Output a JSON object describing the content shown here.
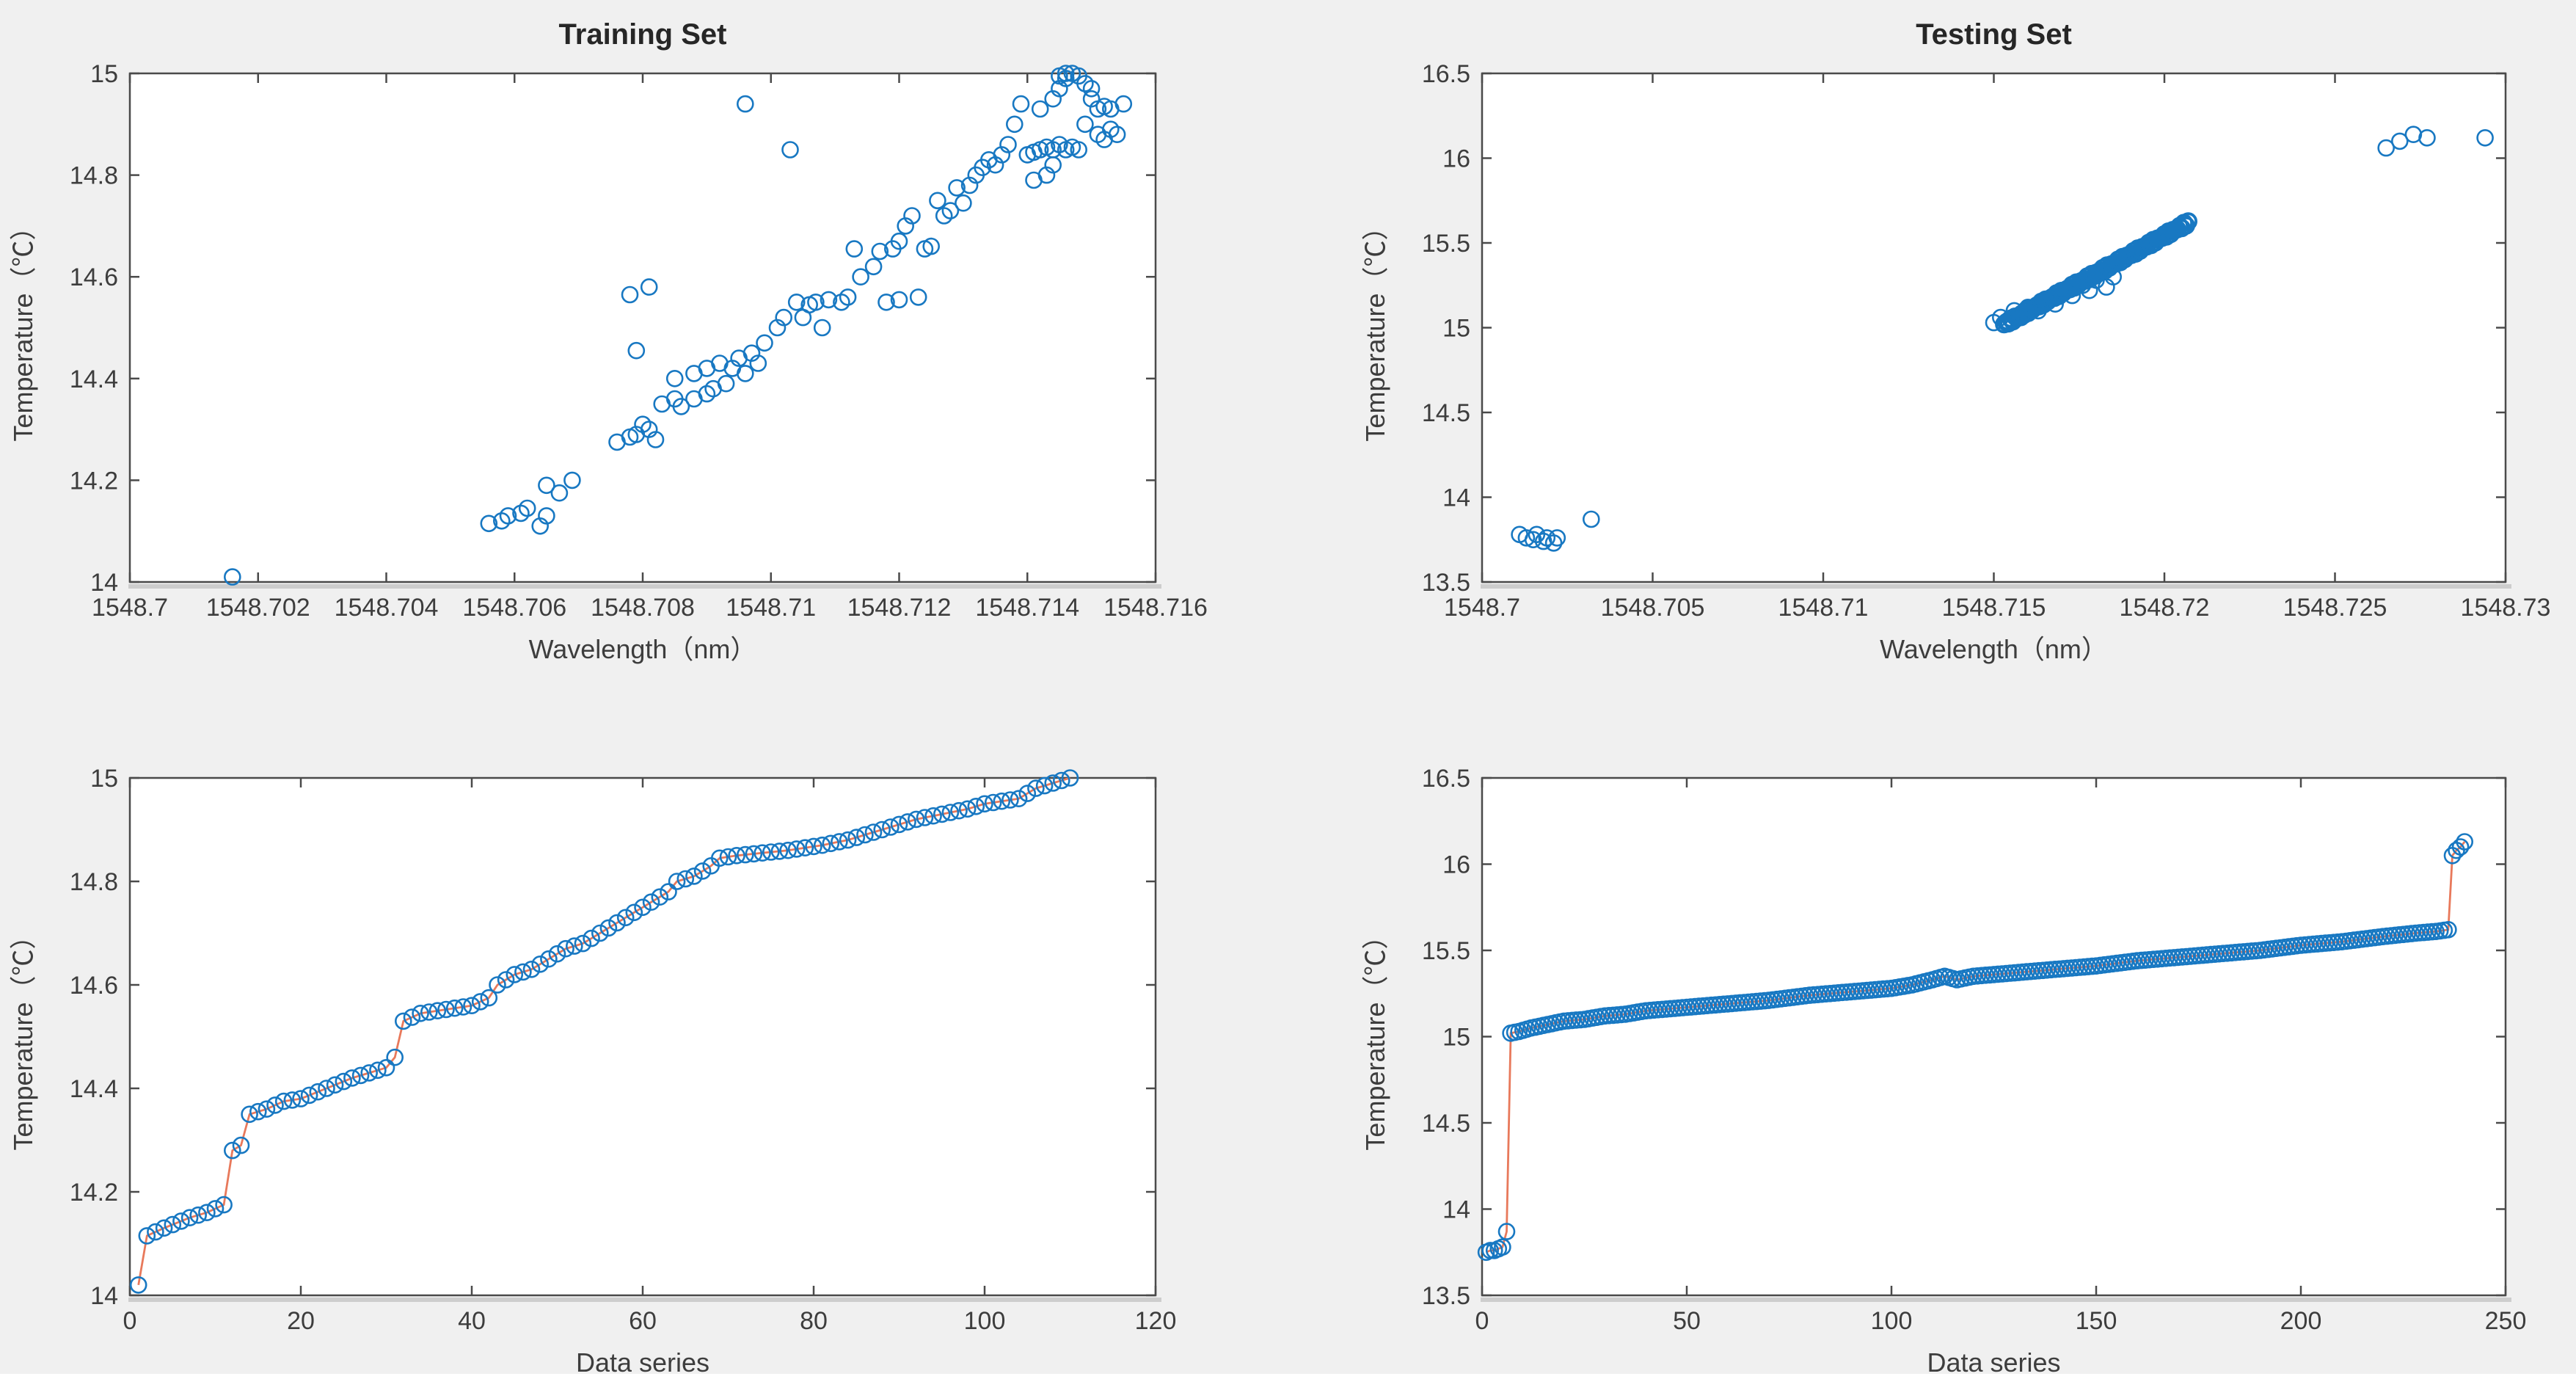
{
  "figure": {
    "bg_color": "#f0f0f0",
    "panel_bg_color": "#ffffff",
    "frame_color": "#4a4a4a",
    "shadow_color": "#cdcdcd",
    "tick_label_color": "#3d3d3d",
    "title_color": "#262626",
    "marker_color": "#1878c2",
    "line_color": "#e8795b"
  },
  "chart_data": [
    {
      "id": "training-scatter",
      "type": "scatter",
      "title": "Training Set",
      "xlabel": "Wavelength（nm）",
      "ylabel": "Temperature（℃）",
      "xlim": [
        1548.7,
        1548.716
      ],
      "ylim": [
        14,
        15
      ],
      "grid": false,
      "legend": null,
      "xtick_vals": [
        1548.7,
        1548.702,
        1548.704,
        1548.706,
        1548.708,
        1548.71,
        1548.712,
        1548.714,
        1548.716
      ],
      "xtick_labels": [
        "1548.7",
        "1548.702",
        "1548.704",
        "1548.706",
        "1548.708",
        "1548.71",
        "1548.712",
        "1548.714",
        "1548.716"
      ],
      "ytick_vals": [
        14,
        14.2,
        14.4,
        14.6,
        14.8,
        15
      ],
      "ytick_labels": [
        "14",
        "14.2",
        "14.4",
        "14.6",
        "14.8",
        "15"
      ],
      "points": [
        [
          1548.7016,
          14.01
        ],
        [
          1548.7056,
          14.115
        ],
        [
          1548.7058,
          14.12
        ],
        [
          1548.7059,
          14.13
        ],
        [
          1548.7061,
          14.135
        ],
        [
          1548.7062,
          14.145
        ],
        [
          1548.7064,
          14.11
        ],
        [
          1548.7065,
          14.13
        ],
        [
          1548.7065,
          14.19
        ],
        [
          1548.7067,
          14.175
        ],
        [
          1548.7069,
          14.2
        ],
        [
          1548.7076,
          14.275
        ],
        [
          1548.7078,
          14.285
        ],
        [
          1548.7079,
          14.29
        ],
        [
          1548.7081,
          14.3
        ],
        [
          1548.7082,
          14.28
        ],
        [
          1548.708,
          14.31
        ],
        [
          1548.7078,
          14.565
        ],
        [
          1548.7081,
          14.58
        ],
        [
          1548.7079,
          14.455
        ],
        [
          1548.7083,
          14.35
        ],
        [
          1548.7085,
          14.36
        ],
        [
          1548.7086,
          14.345
        ],
        [
          1548.7088,
          14.36
        ],
        [
          1548.709,
          14.37
        ],
        [
          1548.7091,
          14.38
        ],
        [
          1548.7093,
          14.39
        ],
        [
          1548.7085,
          14.4
        ],
        [
          1548.7088,
          14.41
        ],
        [
          1548.709,
          14.42
        ],
        [
          1548.7092,
          14.43
        ],
        [
          1548.7094,
          14.42
        ],
        [
          1548.7095,
          14.44
        ],
        [
          1548.7097,
          14.45
        ],
        [
          1548.7096,
          14.41
        ],
        [
          1548.7098,
          14.43
        ],
        [
          1548.7096,
          14.94
        ],
        [
          1548.7103,
          14.85
        ],
        [
          1548.7099,
          14.47
        ],
        [
          1548.7101,
          14.5
        ],
        [
          1548.7102,
          14.52
        ],
        [
          1548.7104,
          14.55
        ],
        [
          1548.7106,
          14.545
        ],
        [
          1548.7107,
          14.55
        ],
        [
          1548.7109,
          14.555
        ],
        [
          1548.7111,
          14.55
        ],
        [
          1548.7112,
          14.56
        ],
        [
          1548.7105,
          14.52
        ],
        [
          1548.7108,
          14.5
        ],
        [
          1548.7114,
          14.6
        ],
        [
          1548.7116,
          14.62
        ],
        [
          1548.7117,
          14.65
        ],
        [
          1548.7119,
          14.655
        ],
        [
          1548.712,
          14.67
        ],
        [
          1548.7121,
          14.7
        ],
        [
          1548.7122,
          14.72
        ],
        [
          1548.7118,
          14.55
        ],
        [
          1548.712,
          14.555
        ],
        [
          1548.7123,
          14.56
        ],
        [
          1548.7124,
          14.655
        ],
        [
          1548.7125,
          14.66
        ],
        [
          1548.7126,
          14.75
        ],
        [
          1548.7127,
          14.72
        ],
        [
          1548.7113,
          14.655
        ],
        [
          1548.7129,
          14.775
        ],
        [
          1548.7131,
          14.78
        ],
        [
          1548.7132,
          14.8
        ],
        [
          1548.7133,
          14.815
        ],
        [
          1548.7134,
          14.83
        ],
        [
          1548.7135,
          14.82
        ],
        [
          1548.7136,
          14.84
        ],
        [
          1548.7137,
          14.86
        ],
        [
          1548.713,
          14.745
        ],
        [
          1548.7128,
          14.73
        ],
        [
          1548.7139,
          14.94
        ],
        [
          1548.7138,
          14.9
        ],
        [
          1548.714,
          14.84
        ],
        [
          1548.7141,
          14.845
        ],
        [
          1548.7142,
          14.85
        ],
        [
          1548.7143,
          14.855
        ],
        [
          1548.7144,
          14.85
        ],
        [
          1548.7145,
          14.86
        ],
        [
          1548.7146,
          14.85
        ],
        [
          1548.7147,
          14.855
        ],
        [
          1548.7148,
          14.85
        ],
        [
          1548.7141,
          14.79
        ],
        [
          1548.7143,
          14.8
        ],
        [
          1548.7144,
          14.82
        ],
        [
          1548.7142,
          14.93
        ],
        [
          1548.7144,
          14.95
        ],
        [
          1548.7145,
          14.97
        ],
        [
          1548.7146,
          14.99
        ],
        [
          1548.7147,
          15.0
        ],
        [
          1548.7148,
          14.995
        ],
        [
          1548.7149,
          14.98
        ],
        [
          1548.715,
          14.97
        ],
        [
          1548.715,
          14.95
        ],
        [
          1548.7151,
          14.93
        ],
        [
          1548.7152,
          14.935
        ],
        [
          1548.7149,
          14.9
        ],
        [
          1548.7151,
          14.88
        ],
        [
          1548.7153,
          14.89
        ],
        [
          1548.7152,
          14.87
        ],
        [
          1548.7154,
          14.88
        ],
        [
          1548.7153,
          14.93
        ],
        [
          1548.7155,
          14.94
        ],
        [
          1548.7146,
          15.0
        ],
        [
          1548.7145,
          14.995
        ]
      ]
    },
    {
      "id": "testing-scatter",
      "type": "scatter",
      "title": "Testing Set",
      "xlabel": "Wavelength（nm）",
      "ylabel": "Temperature（℃）",
      "xlim": [
        1548.7,
        1548.73
      ],
      "ylim": [
        13.5,
        16.5
      ],
      "grid": false,
      "legend": null,
      "xtick_vals": [
        1548.7,
        1548.705,
        1548.71,
        1548.715,
        1548.72,
        1548.725,
        1548.73
      ],
      "xtick_labels": [
        "1548.7",
        "1548.705",
        "1548.71",
        "1548.715",
        "1548.72",
        "1548.725",
        "1548.73"
      ],
      "ytick_vals": [
        13.5,
        14,
        14.5,
        15,
        15.5,
        16,
        16.5
      ],
      "ytick_labels": [
        "13.5",
        "14",
        "14.5",
        "15",
        "15.5",
        "16",
        "16.5"
      ],
      "points": [
        [
          1548.7011,
          13.78
        ],
        [
          1548.7013,
          13.76
        ],
        [
          1548.7015,
          13.75
        ],
        [
          1548.7016,
          13.78
        ],
        [
          1548.7018,
          13.74
        ],
        [
          1548.7019,
          13.76
        ],
        [
          1548.7021,
          13.73
        ],
        [
          1548.7022,
          13.76
        ],
        [
          1548.7032,
          13.87
        ],
        [
          1548.715,
          15.03
        ],
        [
          1548.7152,
          15.06
        ],
        [
          1548.7154,
          15.04
        ],
        [
          1548.7156,
          15.1
        ],
        [
          1548.7158,
          15.06
        ],
        [
          1548.716,
          15.12
        ],
        [
          1548.7163,
          15.1
        ],
        [
          1548.7166,
          15.17
        ],
        [
          1548.7168,
          15.14
        ],
        [
          1548.717,
          15.22
        ],
        [
          1548.7173,
          15.19
        ],
        [
          1548.7176,
          15.25
        ],
        [
          1548.7178,
          15.22
        ],
        [
          1548.718,
          15.28
        ],
        [
          1548.7183,
          15.24
        ],
        [
          1548.7185,
          15.3
        ],
        [
          1548.7265,
          16.06
        ],
        [
          1548.7269,
          16.1
        ],
        [
          1548.7273,
          16.14
        ],
        [
          1548.7277,
          16.12
        ],
        [
          1548.7294,
          16.12
        ]
      ],
      "dense_streak": {
        "n": 85,
        "x_start": 1548.7153,
        "t_start": 15.02,
        "x_end": 1548.7207,
        "t_end": 15.62,
        "jitter": 0.012
      }
    },
    {
      "id": "training-sorted",
      "type": "line-scatter",
      "title": "",
      "xlabel": "Data series",
      "ylabel": "Temperature（℃）",
      "xlim": [
        0,
        120
      ],
      "ylim": [
        14,
        15
      ],
      "grid": false,
      "legend": null,
      "xtick_vals": [
        0,
        20,
        40,
        60,
        80,
        100,
        120
      ],
      "xtick_labels": [
        "0",
        "20",
        "40",
        "60",
        "80",
        "100",
        "120"
      ],
      "ytick_vals": [
        14,
        14.2,
        14.4,
        14.6,
        14.8,
        15
      ],
      "ytick_labels": [
        "14",
        "14.2",
        "14.4",
        "14.6",
        "14.8",
        "15"
      ],
      "x_step": 1,
      "knots": [
        [
          1,
          14.02
        ],
        [
          2,
          14.115
        ],
        [
          4,
          14.13
        ],
        [
          7,
          14.15
        ],
        [
          9,
          14.16
        ],
        [
          11,
          14.175
        ],
        [
          12,
          14.28
        ],
        [
          13,
          14.29
        ],
        [
          14,
          14.35
        ],
        [
          16,
          14.36
        ],
        [
          18,
          14.375
        ],
        [
          20,
          14.38
        ],
        [
          23,
          14.4
        ],
        [
          26,
          14.42
        ],
        [
          28,
          14.43
        ],
        [
          30,
          14.44
        ],
        [
          31,
          14.46
        ],
        [
          32,
          14.53
        ],
        [
          34,
          14.545
        ],
        [
          36,
          14.55
        ],
        [
          38,
          14.555
        ],
        [
          40,
          14.56
        ],
        [
          42,
          14.575
        ],
        [
          43,
          14.6
        ],
        [
          45,
          14.62
        ],
        [
          47,
          14.63
        ],
        [
          49,
          14.65
        ],
        [
          51,
          14.67
        ],
        [
          53,
          14.68
        ],
        [
          55,
          14.7
        ],
        [
          57,
          14.72
        ],
        [
          59,
          14.74
        ],
        [
          61,
          14.76
        ],
        [
          63,
          14.78
        ],
        [
          64,
          14.8
        ],
        [
          66,
          14.81
        ],
        [
          68,
          14.83
        ],
        [
          69,
          14.845
        ],
        [
          71,
          14.85
        ],
        [
          74,
          14.855
        ],
        [
          77,
          14.86
        ],
        [
          79,
          14.865
        ],
        [
          81,
          14.87
        ],
        [
          84,
          14.88
        ],
        [
          86,
          14.89
        ],
        [
          88,
          14.9
        ],
        [
          90,
          14.91
        ],
        [
          92,
          14.92
        ],
        [
          95,
          14.93
        ],
        [
          98,
          14.94
        ],
        [
          100,
          14.95
        ],
        [
          102,
          14.955
        ],
        [
          104,
          14.96
        ],
        [
          105,
          14.97
        ],
        [
          106,
          14.98
        ],
        [
          107,
          14.985
        ],
        [
          108,
          14.99
        ],
        [
          109,
          14.995
        ],
        [
          110,
          15.0
        ]
      ]
    },
    {
      "id": "testing-sorted",
      "type": "line-scatter",
      "title": "",
      "xlabel": "Data series",
      "ylabel": "Temperature（℃）",
      "xlim": [
        0,
        250
      ],
      "ylim": [
        13.5,
        16.5
      ],
      "grid": false,
      "legend": null,
      "xtick_vals": [
        0,
        50,
        100,
        150,
        200,
        250
      ],
      "xtick_labels": [
        "0",
        "50",
        "100",
        "150",
        "200",
        "250"
      ],
      "ytick_vals": [
        13.5,
        14,
        14.5,
        15,
        15.5,
        16,
        16.5
      ],
      "ytick_labels": [
        "13.5",
        "14",
        "14.5",
        "15",
        "15.5",
        "16",
        "16.5"
      ],
      "x_step": 1,
      "knots": [
        [
          1,
          13.75
        ],
        [
          2,
          13.76
        ],
        [
          3,
          13.76
        ],
        [
          4,
          13.77
        ],
        [
          5,
          13.78
        ],
        [
          6,
          13.87
        ],
        [
          7,
          15.02
        ],
        [
          9,
          15.03
        ],
        [
          12,
          15.05
        ],
        [
          16,
          15.07
        ],
        [
          20,
          15.09
        ],
        [
          25,
          15.1
        ],
        [
          30,
          15.12
        ],
        [
          35,
          15.13
        ],
        [
          40,
          15.15
        ],
        [
          50,
          15.17
        ],
        [
          60,
          15.19
        ],
        [
          70,
          15.21
        ],
        [
          80,
          15.24
        ],
        [
          90,
          15.26
        ],
        [
          100,
          15.28
        ],
        [
          105,
          15.3
        ],
        [
          110,
          15.33
        ],
        [
          113,
          15.35
        ],
        [
          116,
          15.33
        ],
        [
          120,
          15.35
        ],
        [
          130,
          15.37
        ],
        [
          140,
          15.39
        ],
        [
          150,
          15.41
        ],
        [
          160,
          15.44
        ],
        [
          170,
          15.46
        ],
        [
          180,
          15.48
        ],
        [
          190,
          15.5
        ],
        [
          200,
          15.53
        ],
        [
          210,
          15.55
        ],
        [
          220,
          15.58
        ],
        [
          228,
          15.6
        ],
        [
          233,
          15.61
        ],
        [
          236,
          15.62
        ],
        [
          237,
          16.05
        ],
        [
          238,
          16.08
        ],
        [
          239,
          16.1
        ],
        [
          240,
          16.13
        ]
      ]
    }
  ]
}
